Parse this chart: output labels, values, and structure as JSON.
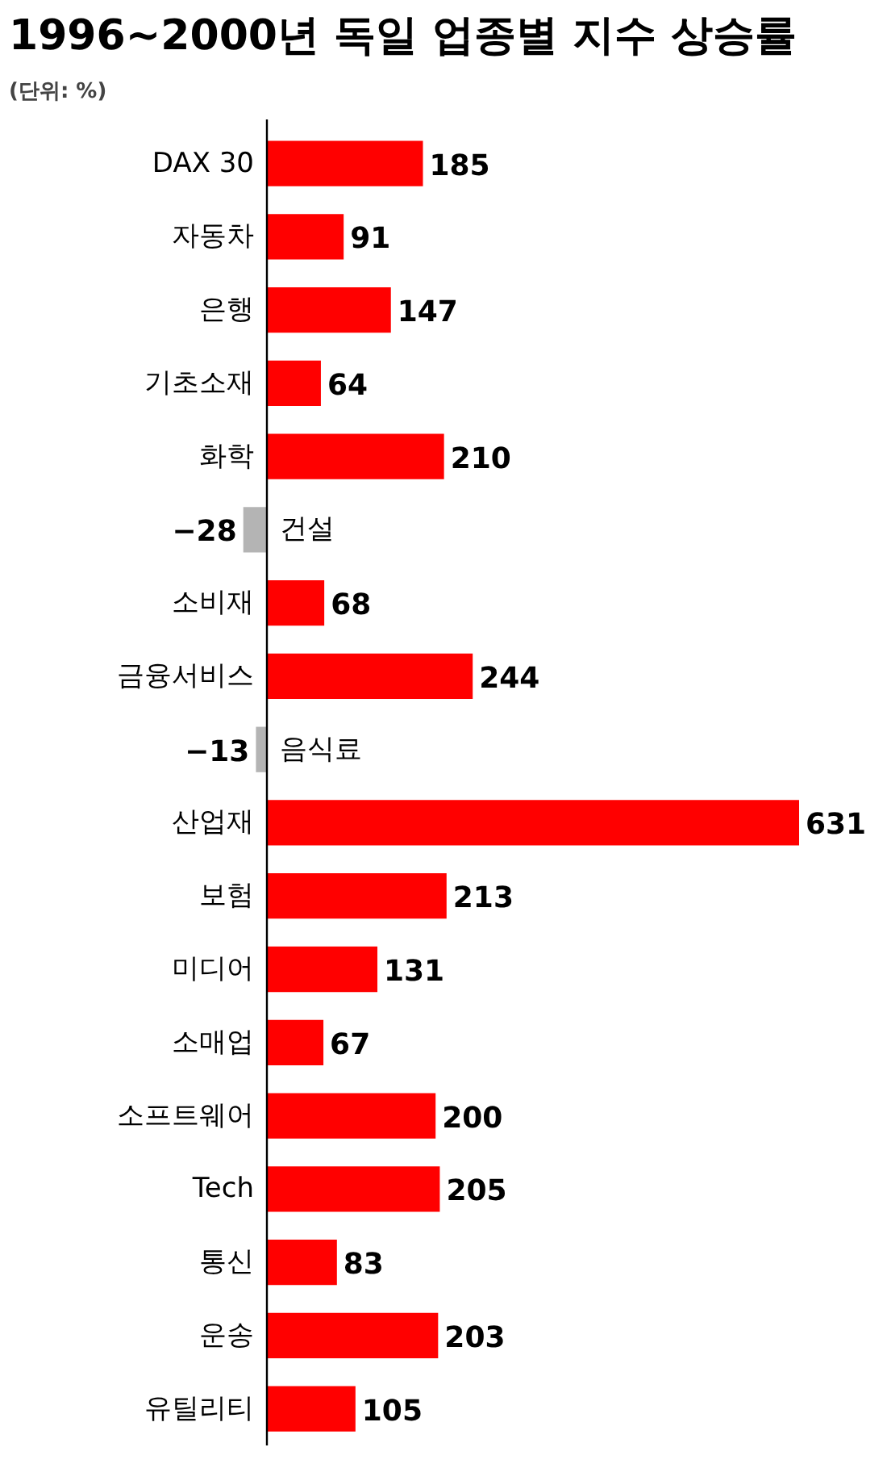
{
  "chart_data": {
    "type": "bar",
    "orientation": "horizontal",
    "title": "1996~2000년 독일 업종별 지수 상승률",
    "subtitle": "(단위: %)",
    "categories": [
      "DAX 30",
      "자동차",
      "은행",
      "기초소재",
      "화학",
      "건설",
      "소비재",
      "금융서비스",
      "음식료",
      "산업재",
      "보험",
      "미디어",
      "소매업",
      "소프트웨어",
      "Tech",
      "통신",
      "운송",
      "유틸리티"
    ],
    "values": [
      185,
      91,
      147,
      64,
      210,
      -28,
      68,
      244,
      -13,
      631,
      213,
      131,
      67,
      200,
      205,
      83,
      203,
      105
    ],
    "colors": [
      "#ff0000",
      "#ff0000",
      "#ff0000",
      "#ff0000",
      "#ff0000",
      "#b4b4b4",
      "#ff0000",
      "#ff0000",
      "#b4b4b4",
      "#ff0000",
      "#ff0000",
      "#ff0000",
      "#ff0000",
      "#ff0000",
      "#ff0000",
      "#ff0000",
      "#ff0000",
      "#ff0000"
    ],
    "data_labels": true,
    "grid": false
  }
}
